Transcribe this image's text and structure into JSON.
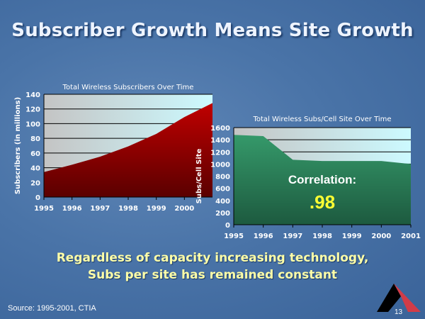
{
  "slide": {
    "title": "Subscriber Growth Means Site Growth",
    "message_line1": "Regardless of capacity increasing technology,",
    "message_line2": "Subs per site has remained constant",
    "source": "Source:  1995-2001, CTIA",
    "page_number": "13"
  },
  "chart_data": [
    {
      "type": "area",
      "title": "Total Wireless Subscribers Over Time",
      "xlabel": "",
      "ylabel": "Subscribers (in millions)",
      "x": [
        1995,
        1996,
        1997,
        1998,
        1999,
        2000,
        2001
      ],
      "values": [
        34,
        44,
        55,
        69,
        86,
        109,
        128
      ],
      "xticks": [
        "1995",
        "1996",
        "1997",
        "1998",
        "1999",
        "2000"
      ],
      "yticks": [
        "0",
        "20",
        "40",
        "60",
        "80",
        "100",
        "120",
        "140"
      ],
      "ylim": [
        0,
        140
      ],
      "grid": true,
      "fill_color": "#a00000"
    },
    {
      "type": "area",
      "title": "Total Wireless Subs/Cell Site Over Time",
      "xlabel": "",
      "ylabel": "Subs/Cell Site",
      "x": [
        1995,
        1996,
        1997,
        1998,
        1999,
        2000,
        2001
      ],
      "values": [
        1480,
        1460,
        1070,
        1050,
        1050,
        1050,
        1000
      ],
      "xticks": [
        "1995",
        "1996",
        "1997",
        "1998",
        "1999",
        "2000",
        "2001"
      ],
      "yticks": [
        "0",
        "200",
        "400",
        "600",
        "800",
        "1000",
        "1200",
        "1400",
        "1600"
      ],
      "ylim": [
        0,
        1600
      ],
      "grid": true,
      "fill_color": "#2e8b57",
      "annotation_label": "Correlation:",
      "annotation_value": ".98"
    }
  ]
}
